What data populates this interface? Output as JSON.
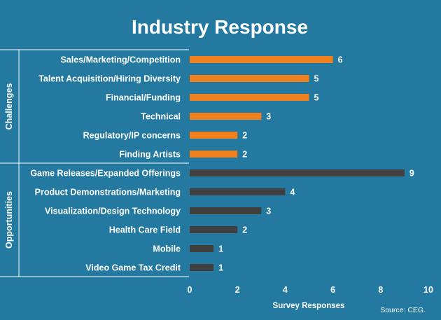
{
  "chart_data": {
    "type": "bar",
    "orientation": "horizontal",
    "title": "Industry Response",
    "xlabel": "Survey Responses",
    "xlim": [
      0,
      10
    ],
    "xticks": [
      0,
      2,
      4,
      6,
      8,
      10
    ],
    "source": "Source: CEG.",
    "groups": [
      {
        "name": "Challenges",
        "color": "#f07f1d",
        "categories": [
          "Sales/Marketing/Competition",
          "Talent Acquisition/Hiring Diversity",
          "Financial/Funding",
          "Technical",
          "Regulatory/IP concerns",
          "Finding Artists"
        ],
        "values": [
          6,
          5,
          5,
          3,
          2,
          2
        ]
      },
      {
        "name": "Opportunities",
        "color": "#404040",
        "categories": [
          "Game Releases/Expanded Offerings",
          "Product Demonstrations/Marketing",
          "Visualization/Design Technology",
          "Health Care Field",
          "Mobile",
          "Video Game Tax Credit"
        ],
        "values": [
          9,
          4,
          3,
          2,
          1,
          1
        ]
      }
    ],
    "grid": false,
    "legend": "none"
  }
}
